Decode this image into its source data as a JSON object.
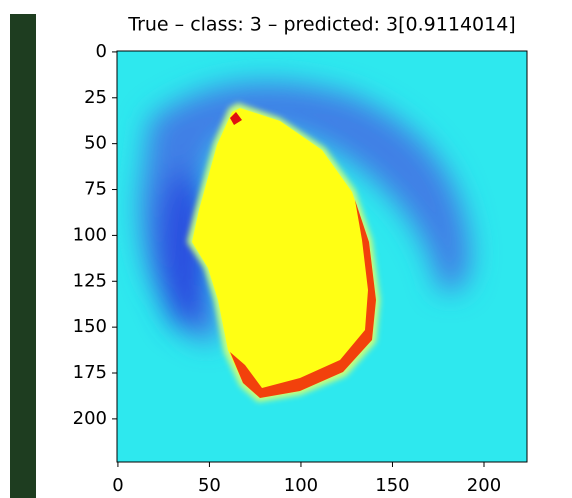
{
  "chart_data": {
    "type": "image",
    "title": "True – class: 3 – predicted: 3[0.9114014]",
    "xlim": [
      -0.5,
      223.5
    ],
    "ylim": [
      223.5,
      -0.5
    ],
    "xticks": [
      0,
      50,
      100,
      150,
      200
    ],
    "yticks": [
      0,
      25,
      50,
      75,
      100,
      125,
      150,
      175,
      200
    ]
  }
}
